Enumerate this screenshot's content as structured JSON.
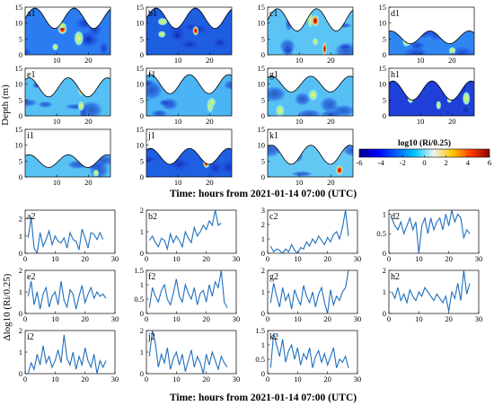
{
  "figure": {
    "top_ylabel": "Depth (m)",
    "top_xlabel": "Time: hours from 2021-01-14 07:00 (UTC)",
    "bottom_ylabel": "Δlog10 (Ri/0.25)",
    "bottom_xlabel": "Time: hours from 2021-01-14 07:00 (UTC)"
  },
  "colorbar": {
    "label": "log10 (Ri/0.25)",
    "ticks": [
      -6,
      -4,
      -2,
      0,
      2,
      4,
      6
    ],
    "colors": [
      "#00008f",
      "#0000ff",
      "#0060ff",
      "#00c8ff",
      "#f0f0f0",
      "#ffc800",
      "#ff3c00",
      "#8f0000"
    ]
  },
  "chart_data": [
    {
      "type": "heatmap",
      "panel": "a1",
      "xlim": [
        0,
        27
      ],
      "ylim": [
        0,
        15
      ],
      "xticks": [
        10,
        20
      ],
      "yticks": [
        0,
        5,
        10,
        15
      ],
      "surface": {
        "mean": 11.5,
        "amp": 3.2,
        "period": 12.4,
        "phase": 0
      },
      "background": "#2a7cf0"
    },
    {
      "type": "heatmap",
      "panel": "b1",
      "xlim": [
        0,
        27
      ],
      "ylim": [
        0,
        15
      ],
      "xticks": [
        10,
        20
      ],
      "yticks": [
        0,
        5,
        10,
        15
      ],
      "surface": {
        "mean": 11.5,
        "amp": 3.2,
        "period": 12.4,
        "phase": 0
      },
      "background": "#1e5fe0"
    },
    {
      "type": "heatmap",
      "panel": "c1",
      "xlim": [
        0,
        27
      ],
      "ylim": [
        0,
        15
      ],
      "xticks": [
        10,
        20
      ],
      "yticks": [
        0,
        5,
        10,
        15
      ],
      "surface": {
        "mean": 11.0,
        "amp": 3.5,
        "period": 12.4,
        "phase": 0
      },
      "background": "#5cc3f5"
    },
    {
      "type": "heatmap",
      "panel": "d1",
      "xlim": [
        0,
        27
      ],
      "ylim": [
        0,
        15
      ],
      "xticks": [
        10,
        20
      ],
      "yticks": [
        0,
        5,
        10,
        15
      ],
      "surface": {
        "mean": 5.5,
        "amp": 2.0,
        "period": 12.4,
        "phase": 0.4
      },
      "background": "#2f86f2"
    },
    {
      "type": "heatmap",
      "panel": "e1",
      "xlim": [
        0,
        27
      ],
      "ylim": [
        0,
        15
      ],
      "xticks": [
        10,
        20
      ],
      "yticks": [
        0,
        5,
        10,
        15
      ],
      "surface": {
        "mean": 9.0,
        "amp": 3.0,
        "period": 12.4,
        "phase": 0.3
      },
      "background": "#56c0f5"
    },
    {
      "type": "heatmap",
      "panel": "f1",
      "xlim": [
        0,
        27
      ],
      "ylim": [
        0,
        15
      ],
      "xticks": [
        10,
        20
      ],
      "yticks": [
        0,
        5,
        10,
        15
      ],
      "surface": {
        "mean": 10.0,
        "amp": 3.0,
        "period": 12.4,
        "phase": 0.3
      },
      "background": "#4ab4f4"
    },
    {
      "type": "heatmap",
      "panel": "g1",
      "xlim": [
        0,
        27
      ],
      "ylim": [
        0,
        15
      ],
      "xticks": [
        10,
        20
      ],
      "yticks": [
        0,
        5,
        10,
        15
      ],
      "surface": {
        "mean": 10.0,
        "amp": 2.5,
        "period": 12.4,
        "phase": 0.3
      },
      "background": "#56c0f5"
    },
    {
      "type": "heatmap",
      "panel": "h1",
      "xlim": [
        0,
        27
      ],
      "ylim": [
        0,
        15
      ],
      "xticks": [
        10,
        20
      ],
      "yticks": [
        0,
        5,
        10,
        15
      ],
      "surface": {
        "mean": 8.0,
        "amp": 3.0,
        "period": 12.4,
        "phase": 0.3
      },
      "background": "#1f3fd8"
    },
    {
      "type": "heatmap",
      "panel": "i1",
      "xlim": [
        0,
        27
      ],
      "ylim": [
        0,
        15
      ],
      "xticks": [
        10,
        20
      ],
      "yticks": [
        0,
        5,
        10,
        15
      ],
      "surface": {
        "mean": 5.0,
        "amp": 2.0,
        "period": 12.4,
        "phase": 0.3
      },
      "background": "#58c2f5"
    },
    {
      "type": "heatmap",
      "panel": "j1",
      "xlim": [
        0,
        27
      ],
      "ylim": [
        0,
        15
      ],
      "xticks": [
        10,
        20
      ],
      "yticks": [
        0,
        5,
        10,
        15
      ],
      "surface": {
        "mean": 6.5,
        "amp": 2.5,
        "period": 12.4,
        "phase": 0.3
      },
      "background": "#1f60e2"
    },
    {
      "type": "heatmap",
      "panel": "k1",
      "xlim": [
        0,
        27
      ],
      "ylim": [
        0,
        15
      ],
      "xticks": [
        10,
        20
      ],
      "yticks": [
        0,
        5,
        10,
        15
      ],
      "surface": {
        "mean": 7.0,
        "amp": 3.0,
        "period": 12.4,
        "phase": 0.3
      },
      "background": "#64c8f5"
    },
    {
      "type": "line",
      "panel": "a2",
      "xlim": [
        0,
        30
      ],
      "ylim": [
        0,
        2.5
      ],
      "xticks": [
        0,
        10,
        20,
        30
      ],
      "yticks": [
        0,
        1,
        2
      ],
      "series": [
        {
          "x": [
            1,
            2,
            3,
            4,
            5,
            6,
            7,
            8,
            9,
            10,
            11,
            12,
            13,
            14,
            15,
            16,
            17,
            18,
            19,
            20,
            21,
            22,
            23,
            24,
            25,
            26
          ],
          "values": [
            0.9,
            2.1,
            0.3,
            0.0,
            1.2,
            0.4,
            0.8,
            1.3,
            0.5,
            1.0,
            0.7,
            0.6,
            0.9,
            0.3,
            1.2,
            0.8,
            0.7,
            0.2,
            1.4,
            0.9,
            0.3,
            1.2,
            1.1,
            0.8,
            1.2,
            0.8
          ]
        }
      ]
    },
    {
      "type": "line",
      "panel": "b2",
      "xlim": [
        0,
        30
      ],
      "ylim": [
        0,
        2
      ],
      "xticks": [
        0,
        10,
        20,
        30
      ],
      "yticks": [
        0,
        1,
        2
      ],
      "series": [
        {
          "x": [
            1,
            2,
            3,
            4,
            5,
            6,
            7,
            8,
            9,
            10,
            11,
            12,
            13,
            14,
            15,
            16,
            17,
            18,
            19,
            20,
            21,
            22,
            23,
            24,
            25
          ],
          "values": [
            0.6,
            0.8,
            0.5,
            0.3,
            0.7,
            0.6,
            0.2,
            0.9,
            0.5,
            0.8,
            0.6,
            0.3,
            1.0,
            0.7,
            0.5,
            1.2,
            0.8,
            1.0,
            1.3,
            1.1,
            1.5,
            1.3,
            2.0,
            1.3,
            1.4
          ]
        }
      ]
    },
    {
      "type": "line",
      "panel": "c2",
      "xlim": [
        0,
        30
      ],
      "ylim": [
        0,
        3
      ],
      "xticks": [
        0,
        10,
        20,
        30
      ],
      "yticks": [
        0,
        1,
        2,
        3
      ],
      "series": [
        {
          "x": [
            1,
            2,
            3,
            4,
            5,
            6,
            7,
            8,
            9,
            10,
            11,
            12,
            13,
            14,
            15,
            16,
            17,
            18,
            19,
            20,
            21,
            22,
            23,
            24,
            25,
            26,
            27
          ],
          "values": [
            0.5,
            0.1,
            0.3,
            0.2,
            0.0,
            0.3,
            0.1,
            0.6,
            0.2,
            0.0,
            0.4,
            0.3,
            0.8,
            0.5,
            1.0,
            0.7,
            1.2,
            0.9,
            0.6,
            1.1,
            0.8,
            1.3,
            1.5,
            1.0,
            1.8,
            3.0,
            1.2
          ]
        }
      ]
    },
    {
      "type": "line",
      "panel": "d2",
      "xlim": [
        0,
        30
      ],
      "ylim": [
        0,
        1.1
      ],
      "xticks": [
        0,
        10,
        20,
        30
      ],
      "yticks": [
        0,
        0.5,
        1
      ],
      "series": [
        {
          "x": [
            1,
            2,
            3,
            4,
            5,
            6,
            7,
            8,
            9,
            10,
            11,
            12,
            13,
            14,
            15,
            16,
            17,
            18,
            19,
            20,
            21,
            22,
            23,
            24,
            25,
            26,
            27
          ],
          "values": [
            0.9,
            0.7,
            0.6,
            0.8,
            0.5,
            0.7,
            0.9,
            0.6,
            0.8,
            0.0,
            0.7,
            0.9,
            0.5,
            0.9,
            0.6,
            0.8,
            0.9,
            0.6,
            1.0,
            0.7,
            1.1,
            0.8,
            1.0,
            0.9,
            0.4,
            0.6,
            0.5
          ]
        }
      ]
    },
    {
      "type": "line",
      "panel": "e2",
      "xlim": [
        0,
        30
      ],
      "ylim": [
        0,
        2
      ],
      "xticks": [
        0,
        10,
        20,
        30
      ],
      "yticks": [
        0,
        1,
        2
      ],
      "series": [
        {
          "x": [
            1,
            2,
            3,
            4,
            5,
            6,
            7,
            8,
            9,
            10,
            11,
            12,
            13,
            14,
            15,
            16,
            17,
            18,
            19,
            20,
            21,
            22,
            23,
            24,
            25,
            26,
            27
          ],
          "values": [
            0.8,
            1.5,
            0.4,
            1.0,
            0.2,
            0.9,
            1.2,
            0.3,
            0.8,
            1.0,
            0.4,
            1.5,
            0.6,
            0.3,
            1.1,
            0.9,
            0.2,
            0.8,
            1.3,
            0.5,
            0.9,
            1.2,
            0.7,
            1.0,
            0.8,
            0.9,
            0.7
          ]
        }
      ]
    },
    {
      "type": "line",
      "panel": "f2",
      "xlim": [
        0,
        30
      ],
      "ylim": [
        0,
        1.5
      ],
      "xticks": [
        0,
        10,
        20,
        30
      ],
      "yticks": [
        0,
        0.5,
        1,
        1.5
      ],
      "series": [
        {
          "x": [
            1,
            2,
            3,
            4,
            5,
            6,
            7,
            8,
            9,
            10,
            11,
            12,
            13,
            14,
            15,
            16,
            17,
            18,
            19,
            20,
            21,
            22,
            23,
            24,
            25,
            26,
            27
          ],
          "values": [
            0.2,
            0.9,
            0.6,
            0.4,
            0.8,
            1.0,
            0.5,
            0.3,
            0.7,
            1.2,
            0.6,
            0.4,
            1.0,
            0.7,
            0.5,
            0.9,
            0.3,
            0.7,
            0.8,
            0.4,
            1.0,
            0.6,
            1.1,
            0.9,
            1.5,
            0.4,
            0.2
          ]
        }
      ]
    },
    {
      "type": "line",
      "panel": "g2",
      "xlim": [
        0,
        30
      ],
      "ylim": [
        0,
        2
      ],
      "xticks": [
        0,
        10,
        20,
        30
      ],
      "yticks": [
        0,
        1,
        2
      ],
      "series": [
        {
          "x": [
            1,
            2,
            3,
            4,
            5,
            6,
            7,
            8,
            9,
            10,
            11,
            12,
            13,
            14,
            15,
            16,
            17,
            18,
            19,
            20,
            21,
            22,
            23,
            24,
            25,
            26,
            27
          ],
          "values": [
            0.5,
            1.4,
            0.8,
            0.3,
            1.2,
            0.6,
            0.9,
            0.2,
            1.1,
            0.7,
            0.4,
            1.3,
            0.8,
            0.5,
            1.0,
            0.3,
            0.9,
            1.2,
            0.5,
            0.0,
            1.1,
            0.4,
            0.8,
            0.6,
            1.0,
            1.2,
            2.0
          ]
        }
      ]
    },
    {
      "type": "line",
      "panel": "h2",
      "xlim": [
        0,
        30
      ],
      "ylim": [
        0,
        2
      ],
      "xticks": [
        0,
        10,
        20,
        30
      ],
      "yticks": [
        0,
        1,
        2
      ],
      "series": [
        {
          "x": [
            1,
            2,
            3,
            4,
            5,
            6,
            7,
            8,
            9,
            10,
            11,
            12,
            13,
            14,
            15,
            16,
            17,
            18,
            19,
            20,
            21,
            22,
            23,
            24,
            25,
            26,
            27
          ],
          "values": [
            1.0,
            0.7,
            1.2,
            0.6,
            0.9,
            0.5,
            1.1,
            0.8,
            0.6,
            1.0,
            0.8,
            1.2,
            1.0,
            0.8,
            0.6,
            0.9,
            0.7,
            0.5,
            0.8,
            0.1,
            1.0,
            0.7,
            1.4,
            0.6,
            2.0,
            0.9,
            1.4
          ]
        }
      ]
    },
    {
      "type": "line",
      "panel": "i2",
      "xlim": [
        0,
        30
      ],
      "ylim": [
        0,
        2
      ],
      "xticks": [
        0,
        10,
        20,
        30
      ],
      "yticks": [
        0,
        1,
        2
      ],
      "series": [
        {
          "x": [
            1,
            2,
            3,
            4,
            5,
            6,
            7,
            8,
            9,
            10,
            11,
            12,
            13,
            14,
            15,
            16,
            17,
            18,
            19,
            20,
            21,
            22,
            23,
            24,
            25,
            26,
            27
          ],
          "values": [
            0.0,
            0.5,
            0.2,
            0.9,
            0.4,
            1.3,
            0.5,
            0.8,
            0.3,
            0.6,
            1.1,
            0.5,
            1.8,
            0.7,
            0.4,
            1.0,
            0.2,
            0.8,
            0.4,
            1.2,
            0.6,
            0.3,
            0.9,
            0.0,
            0.6,
            0.3,
            0.6
          ]
        }
      ]
    },
    {
      "type": "line",
      "panel": "j2",
      "xlim": [
        0,
        30
      ],
      "ylim": [
        0,
        2
      ],
      "xticks": [
        0,
        10,
        20,
        30
      ],
      "yticks": [
        0,
        1,
        2
      ],
      "series": [
        {
          "x": [
            1,
            2,
            3,
            4,
            5,
            6,
            7,
            8,
            9,
            10,
            11,
            12,
            13,
            14,
            15,
            16,
            17,
            18,
            19,
            20,
            21,
            22,
            23,
            24,
            25,
            26,
            27
          ],
          "values": [
            0.8,
            2.0,
            1.4,
            0.3,
            0.9,
            0.5,
            1.2,
            0.2,
            0.7,
            1.0,
            0.4,
            0.9,
            0.1,
            0.6,
            1.1,
            0.3,
            0.8,
            0.5,
            0.0,
            0.9,
            0.4,
            1.0,
            0.6,
            0.2,
            0.8,
            0.5,
            0.3
          ]
        }
      ]
    },
    {
      "type": "line",
      "panel": "k2",
      "xlim": [
        0,
        30
      ],
      "ylim": [
        0,
        1.5
      ],
      "xticks": [
        0,
        10,
        20,
        30
      ],
      "yticks": [
        0,
        0.5,
        1,
        1.5
      ],
      "series": [
        {
          "x": [
            1,
            2,
            3,
            4,
            5,
            6,
            7,
            8,
            9,
            10,
            11,
            12,
            13,
            14,
            15,
            16,
            17,
            18,
            19,
            20,
            21,
            22,
            23,
            24,
            25,
            26,
            27
          ],
          "values": [
            0.2,
            1.4,
            1.0,
            0.6,
            1.2,
            0.4,
            0.8,
            1.0,
            0.5,
            0.9,
            0.3,
            0.7,
            0.5,
            0.9,
            0.2,
            0.6,
            0.8,
            0.4,
            0.7,
            0.3,
            0.6,
            0.9,
            0.2,
            0.5,
            0.4,
            0.6,
            0.2
          ]
        }
      ]
    }
  ]
}
